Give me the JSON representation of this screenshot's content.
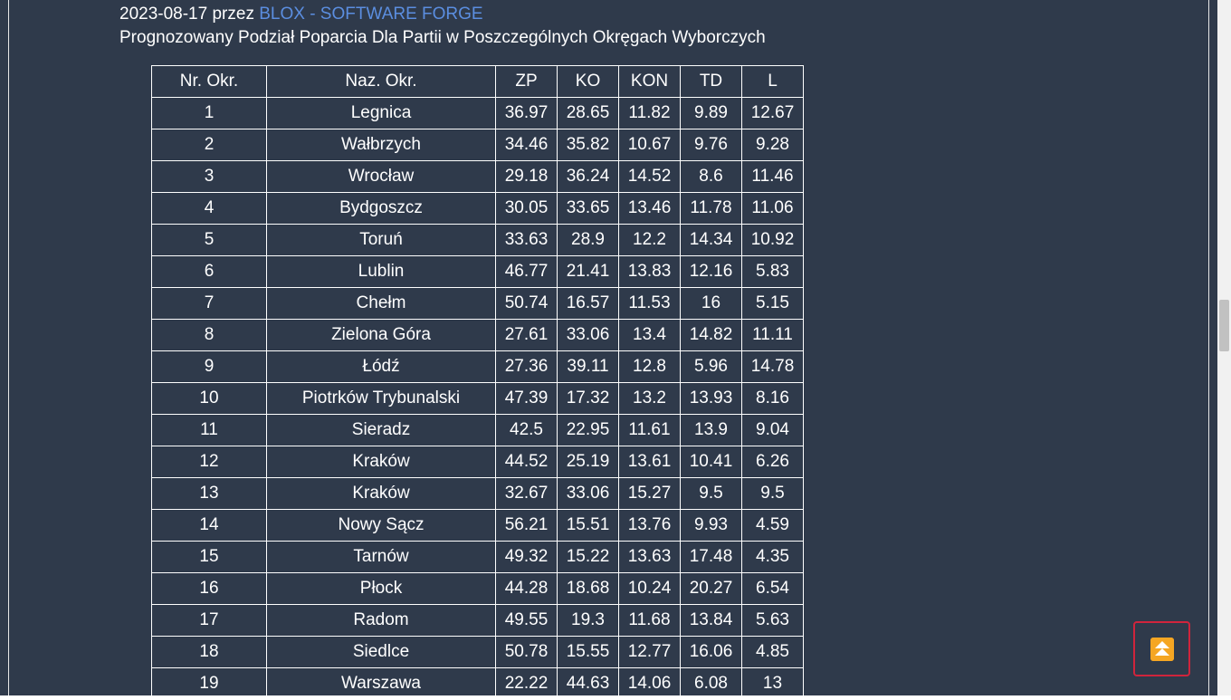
{
  "post": {
    "date": "2023-08-17",
    "by_word": "przez",
    "author": "BLOX - SOFTWARE FORGE",
    "subtitle": "Prognozowany Podział Poparcia Dla Partii w Poszczególnych Okręgach Wyborczych"
  },
  "table": {
    "headers": [
      "Nr. Okr.",
      "Naz. Okr.",
      "ZP",
      "KO",
      "KON",
      "TD",
      "L"
    ],
    "rows": [
      [
        "1",
        "Legnica",
        "36.97",
        "28.65",
        "11.82",
        "9.89",
        "12.67"
      ],
      [
        "2",
        "Wałbrzych",
        "34.46",
        "35.82",
        "10.67",
        "9.76",
        "9.28"
      ],
      [
        "3",
        "Wrocław",
        "29.18",
        "36.24",
        "14.52",
        "8.6",
        "11.46"
      ],
      [
        "4",
        "Bydgoszcz",
        "30.05",
        "33.65",
        "13.46",
        "11.78",
        "11.06"
      ],
      [
        "5",
        "Toruń",
        "33.63",
        "28.9",
        "12.2",
        "14.34",
        "10.92"
      ],
      [
        "6",
        "Lublin",
        "46.77",
        "21.41",
        "13.83",
        "12.16",
        "5.83"
      ],
      [
        "7",
        "Chełm",
        "50.74",
        "16.57",
        "11.53",
        "16",
        "5.15"
      ],
      [
        "8",
        "Zielona Góra",
        "27.61",
        "33.06",
        "13.4",
        "14.82",
        "11.11"
      ],
      [
        "9",
        "Łódź",
        "27.36",
        "39.11",
        "12.8",
        "5.96",
        "14.78"
      ],
      [
        "10",
        "Piotrków Trybunalski",
        "47.39",
        "17.32",
        "13.2",
        "13.93",
        "8.16"
      ],
      [
        "11",
        "Sieradz",
        "42.5",
        "22.95",
        "11.61",
        "13.9",
        "9.04"
      ],
      [
        "12",
        "Kraków",
        "44.52",
        "25.19",
        "13.61",
        "10.41",
        "6.26"
      ],
      [
        "13",
        "Kraków",
        "32.67",
        "33.06",
        "15.27",
        "9.5",
        "9.5"
      ],
      [
        "14",
        "Nowy Sącz",
        "56.21",
        "15.51",
        "13.76",
        "9.93",
        "4.59"
      ],
      [
        "15",
        "Tarnów",
        "49.32",
        "15.22",
        "13.63",
        "17.48",
        "4.35"
      ],
      [
        "16",
        "Płock",
        "44.28",
        "18.68",
        "10.24",
        "20.27",
        "6.54"
      ],
      [
        "17",
        "Radom",
        "49.55",
        "19.3",
        "11.68",
        "13.84",
        "5.63"
      ],
      [
        "18",
        "Siedlce",
        "50.78",
        "15.55",
        "12.77",
        "16.06",
        "4.85"
      ],
      [
        "19",
        "Warszawa",
        "22.22",
        "44.63",
        "14.06",
        "6.08",
        "13"
      ]
    ]
  },
  "back_to_top": {
    "icon": "double-chevron-up-icon",
    "color": "#f5a623",
    "border_color": "#d0243c"
  },
  "colors": {
    "background": "#2f3a4b",
    "link": "#5b8ee0",
    "text": "#ffffff"
  }
}
